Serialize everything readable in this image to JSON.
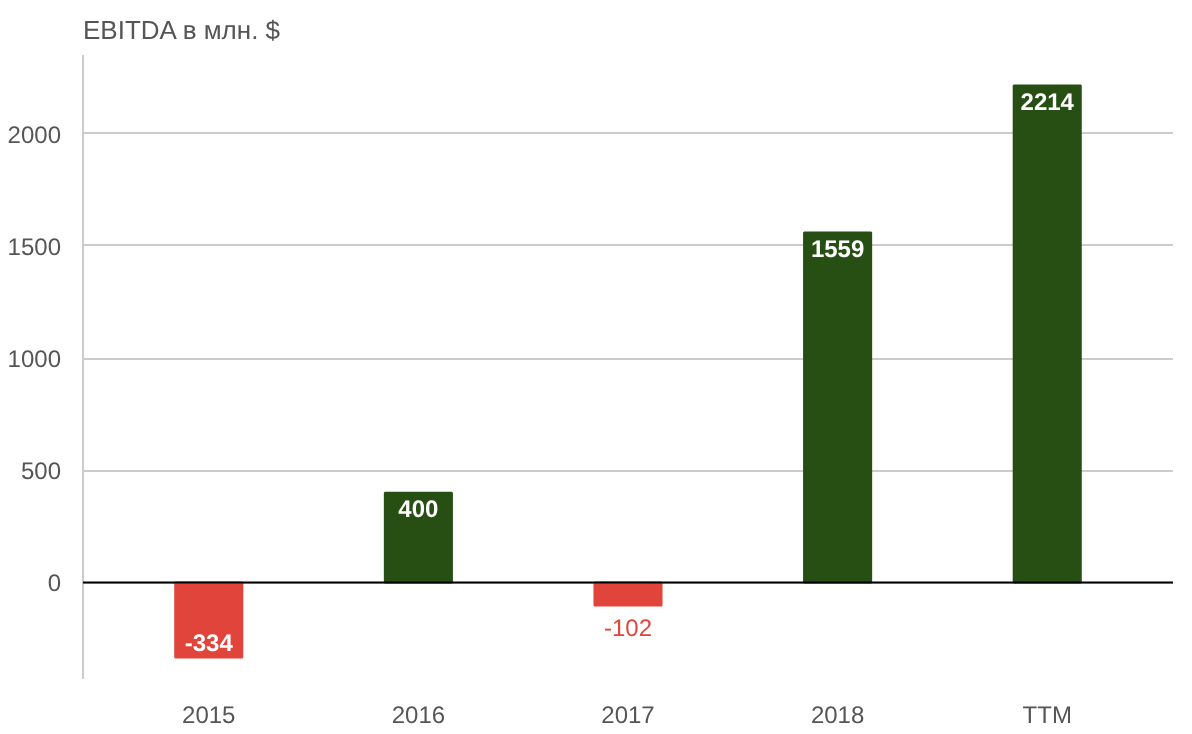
{
  "chart_data": {
    "type": "bar",
    "title": "EBITDA в млн. $",
    "categories": [
      "2015",
      "2016",
      "2017",
      "2018",
      "TTM"
    ],
    "values": [
      -334,
      400,
      -102,
      1559,
      2214
    ],
    "colors": [
      "#e0443a",
      "#274e13",
      "#e0443a",
      "#274e13",
      "#274e13"
    ],
    "ylim": [
      -430,
      2350
    ],
    "yticks": [
      0,
      500,
      1000,
      1500,
      2000
    ],
    "ref_lines": [
      {
        "axis": "y",
        "value": 0,
        "color": "#000000"
      }
    ],
    "grid": "y",
    "data_labels": true
  }
}
